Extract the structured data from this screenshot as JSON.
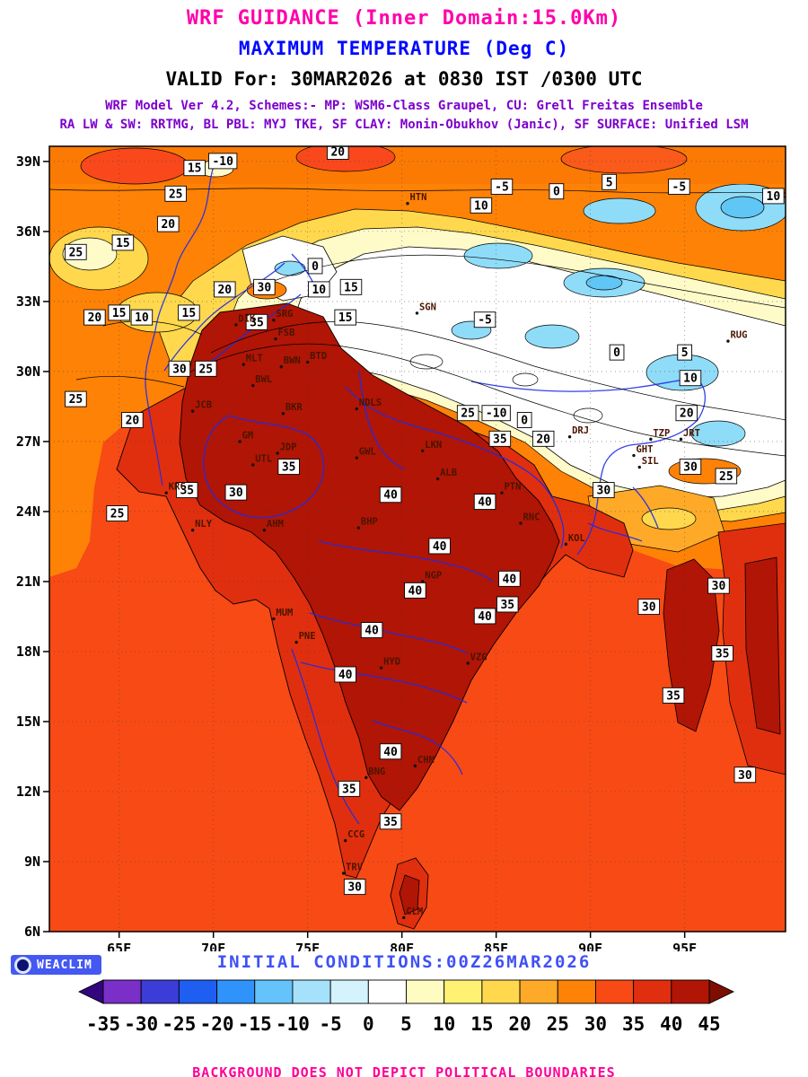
{
  "header": {
    "title": "WRF GUIDANCE (Inner Domain:15.0Km)",
    "subtitle": "MAXIMUM TEMPERATURE (Deg C)",
    "valid_line": "VALID For: 30MAR2026 at 0830 IST /0300 UTC",
    "model_line1": "WRF Model Ver 4.2, Schemes:- MP: WSM6-Class Graupel, CU: Grell Freitas Ensemble",
    "model_line2": "RA LW & SW: RRTMG, BL PBL: MYJ TKE, SF CLAY: Monin-Obukhov (Janic), SF SURFACE: Unified LSM",
    "colors": {
      "title": "#ff00aa",
      "subtitle": "#0008ff",
      "valid": "#000000",
      "model": "#7d00cc"
    }
  },
  "footer": {
    "logo_label": "WEACLIM",
    "initial_conditions": "INITIAL CONDITIONS:00Z26MAR2026",
    "disclaimer": "BACKGROUND DOES NOT DEPICT POLITICAL BOUNDARIES"
  },
  "chart_data": {
    "type": "heatmap",
    "subtype": "filled-contour-weather-map",
    "title": "WRF GUIDANCE (Inner Domain:15.0Km)",
    "variable": "Maximum Temperature",
    "units": "Deg C",
    "valid": "30MAR2026 at 0830 IST /0300 UTC",
    "initial_conditions": "00Z26MAR2026",
    "contour_interval": 5,
    "domain": {
      "lon_min": 61.3,
      "lon_max": 100.35,
      "lat_min": 6.0,
      "lat_max": 39.65
    },
    "axes": {
      "lon": {
        "labels": [
          "65E",
          "70E",
          "75E",
          "80E",
          "85E",
          "90E",
          "95E"
        ],
        "values": [
          65,
          70,
          75,
          80,
          85,
          90,
          95
        ]
      },
      "lat": {
        "labels": [
          "6N",
          "9N",
          "12N",
          "15N",
          "18N",
          "21N",
          "24N",
          "27N",
          "30N",
          "33N",
          "36N",
          "39N"
        ],
        "values": [
          6,
          9,
          12,
          15,
          18,
          21,
          24,
          27,
          30,
          33,
          36,
          39
        ]
      }
    },
    "colorbar": {
      "tick_labels": [
        "-35",
        "-30",
        "-25",
        "-20",
        "-15",
        "-10",
        "-5",
        "0",
        "5",
        "10",
        "15",
        "20",
        "25",
        "30",
        "35",
        "40",
        "45"
      ],
      "tick_values": [
        -35,
        -30,
        -25,
        -20,
        -15,
        -10,
        -5,
        0,
        5,
        10,
        15,
        20,
        25,
        30,
        35,
        40,
        45
      ],
      "segment_colors": [
        "#7a2fc8",
        "#3c3cd8",
        "#1e5ef0",
        "#2f93fb",
        "#64c3fb",
        "#a5e1fb",
        "#d4f3fd",
        "#ffffff",
        "#fffcc2",
        "#fff273",
        "#ffd84d",
        "#feaa28",
        "#fd8206",
        "#f84a15",
        "#e02f0e",
        "#b11505"
      ],
      "arrow_left_color": "#33067e",
      "arrow_right_color": "#7e0e02"
    },
    "contour_labels": [
      {
        "v": "20",
        "lon": 76.6,
        "lat": 39.4
      },
      {
        "v": "15",
        "lon": 69.0,
        "lat": 38.7
      },
      {
        "v": "-10",
        "lon": 70.5,
        "lat": 39.0
      },
      {
        "v": "25",
        "lon": 68.0,
        "lat": 37.6
      },
      {
        "v": "10",
        "lon": 84.2,
        "lat": 37.1
      },
      {
        "v": "-5",
        "lon": 85.3,
        "lat": 37.9
      },
      {
        "v": "0",
        "lon": 88.2,
        "lat": 37.7
      },
      {
        "v": "5",
        "lon": 91.0,
        "lat": 38.1
      },
      {
        "v": "-5",
        "lon": 94.7,
        "lat": 37.9
      },
      {
        "v": "10",
        "lon": 99.7,
        "lat": 37.5
      },
      {
        "v": "20",
        "lon": 67.6,
        "lat": 36.3
      },
      {
        "v": "15",
        "lon": 65.2,
        "lat": 35.5
      },
      {
        "v": "25",
        "lon": 62.7,
        "lat": 35.1
      },
      {
        "v": "30",
        "lon": 72.7,
        "lat": 33.6
      },
      {
        "v": "20",
        "lon": 70.6,
        "lat": 33.5
      },
      {
        "v": "10",
        "lon": 75.6,
        "lat": 33.5
      },
      {
        "v": "15",
        "lon": 77.3,
        "lat": 33.6
      },
      {
        "v": "0",
        "lon": 75.4,
        "lat": 34.5
      },
      {
        "v": "20",
        "lon": 63.7,
        "lat": 32.3
      },
      {
        "v": "15",
        "lon": 65.0,
        "lat": 32.5
      },
      {
        "v": "10",
        "lon": 66.2,
        "lat": 32.3
      },
      {
        "v": "15",
        "lon": 68.7,
        "lat": 32.5
      },
      {
        "v": "35",
        "lon": 72.3,
        "lat": 32.1
      },
      {
        "v": "15",
        "lon": 77.0,
        "lat": 32.3
      },
      {
        "v": "-5",
        "lon": 84.4,
        "lat": 32.2
      },
      {
        "v": "30",
        "lon": 68.2,
        "lat": 30.1
      },
      {
        "v": "25",
        "lon": 69.6,
        "lat": 30.1
      },
      {
        "v": "0",
        "lon": 91.4,
        "lat": 30.8
      },
      {
        "v": "5",
        "lon": 95.0,
        "lat": 30.8
      },
      {
        "v": "10",
        "lon": 95.3,
        "lat": 29.7
      },
      {
        "v": "25",
        "lon": 62.7,
        "lat": 28.8
      },
      {
        "v": "20",
        "lon": 65.7,
        "lat": 27.9
      },
      {
        "v": "25",
        "lon": 83.5,
        "lat": 28.2
      },
      {
        "v": "-10",
        "lon": 85.0,
        "lat": 28.2
      },
      {
        "v": "0",
        "lon": 86.5,
        "lat": 27.9
      },
      {
        "v": "35",
        "lon": 85.2,
        "lat": 27.1
      },
      {
        "v": "20",
        "lon": 87.5,
        "lat": 27.1
      },
      {
        "v": "20",
        "lon": 95.1,
        "lat": 28.2
      },
      {
        "v": "30",
        "lon": 95.3,
        "lat": 25.9
      },
      {
        "v": "25",
        "lon": 97.2,
        "lat": 25.5
      },
      {
        "v": "35",
        "lon": 68.6,
        "lat": 24.9
      },
      {
        "v": "30",
        "lon": 71.2,
        "lat": 24.8
      },
      {
        "v": "35",
        "lon": 74.0,
        "lat": 25.9
      },
      {
        "v": "40",
        "lon": 79.4,
        "lat": 24.7
      },
      {
        "v": "40",
        "lon": 84.4,
        "lat": 24.4
      },
      {
        "v": "30",
        "lon": 90.7,
        "lat": 24.9
      },
      {
        "v": "25",
        "lon": 64.9,
        "lat": 23.9
      },
      {
        "v": "40",
        "lon": 82.0,
        "lat": 22.5
      },
      {
        "v": "40",
        "lon": 80.7,
        "lat": 20.6
      },
      {
        "v": "40",
        "lon": 85.7,
        "lat": 21.1
      },
      {
        "v": "35",
        "lon": 85.6,
        "lat": 20.0
      },
      {
        "v": "40",
        "lon": 84.4,
        "lat": 19.5
      },
      {
        "v": "30",
        "lon": 96.8,
        "lat": 20.8
      },
      {
        "v": "30",
        "lon": 93.1,
        "lat": 19.9
      },
      {
        "v": "40",
        "lon": 78.4,
        "lat": 18.9
      },
      {
        "v": "35",
        "lon": 97.0,
        "lat": 17.9
      },
      {
        "v": "35",
        "lon": 94.4,
        "lat": 16.1
      },
      {
        "v": "40",
        "lon": 77.0,
        "lat": 17.0
      },
      {
        "v": "40",
        "lon": 79.4,
        "lat": 13.7
      },
      {
        "v": "30",
        "lon": 98.2,
        "lat": 12.7
      },
      {
        "v": "35",
        "lon": 77.2,
        "lat": 12.1
      },
      {
        "v": "35",
        "lon": 79.4,
        "lat": 10.7
      },
      {
        "v": "30",
        "lon": 77.5,
        "lat": 7.9
      }
    ],
    "stations": [
      {
        "c": "HTN",
        "lon": 80.3,
        "lat": 37.2
      },
      {
        "c": "SGN",
        "lon": 80.8,
        "lat": 32.5
      },
      {
        "c": "DIK",
        "lon": 71.2,
        "lat": 32.0
      },
      {
        "c": "SRG",
        "lon": 73.2,
        "lat": 32.2
      },
      {
        "c": "FSB",
        "lon": 73.3,
        "lat": 31.4
      },
      {
        "c": "MLT",
        "lon": 71.6,
        "lat": 30.3
      },
      {
        "c": "BWN",
        "lon": 73.6,
        "lat": 30.2
      },
      {
        "c": "BTD",
        "lon": 75.0,
        "lat": 30.4
      },
      {
        "c": "BWL",
        "lon": 72.1,
        "lat": 29.4
      },
      {
        "c": "JCB",
        "lon": 68.9,
        "lat": 28.3
      },
      {
        "c": "BKR",
        "lon": 73.7,
        "lat": 28.2
      },
      {
        "c": "NDLS",
        "lon": 77.6,
        "lat": 28.4
      },
      {
        "c": "GM",
        "lon": 71.4,
        "lat": 27.0
      },
      {
        "c": "JDP",
        "lon": 73.4,
        "lat": 26.5
      },
      {
        "c": "UTL",
        "lon": 72.1,
        "lat": 26.0
      },
      {
        "c": "GWL",
        "lon": 77.6,
        "lat": 26.3
      },
      {
        "c": "LKN",
        "lon": 81.1,
        "lat": 26.6
      },
      {
        "c": "ALB",
        "lon": 81.9,
        "lat": 25.4
      },
      {
        "c": "KRC",
        "lon": 67.5,
        "lat": 24.8
      },
      {
        "c": "NLY",
        "lon": 68.9,
        "lat": 23.2
      },
      {
        "c": "AHM",
        "lon": 72.7,
        "lat": 23.2
      },
      {
        "c": "BHP",
        "lon": 77.7,
        "lat": 23.3
      },
      {
        "c": "PTN",
        "lon": 85.3,
        "lat": 24.8
      },
      {
        "c": "RNC",
        "lon": 86.3,
        "lat": 23.5
      },
      {
        "c": "KOL",
        "lon": 88.7,
        "lat": 22.6
      },
      {
        "c": "NGP",
        "lon": 81.1,
        "lat": 21.0
      },
      {
        "c": "MUM",
        "lon": 73.2,
        "lat": 19.4
      },
      {
        "c": "PNE",
        "lon": 74.4,
        "lat": 18.4
      },
      {
        "c": "HYD",
        "lon": 78.9,
        "lat": 17.3
      },
      {
        "c": "VZG",
        "lon": 83.5,
        "lat": 17.5
      },
      {
        "c": "CHN",
        "lon": 80.7,
        "lat": 13.1
      },
      {
        "c": "BNG",
        "lon": 78.1,
        "lat": 12.6
      },
      {
        "c": "CCG",
        "lon": 77.0,
        "lat": 9.9
      },
      {
        "c": "TRV",
        "lon": 76.9,
        "lat": 8.5
      },
      {
        "c": "CLM",
        "lon": 80.1,
        "lat": 6.6
      },
      {
        "c": "GHT",
        "lon": 92.3,
        "lat": 26.4
      },
      {
        "c": "SIL",
        "lon": 92.6,
        "lat": 25.9
      },
      {
        "c": "RUG",
        "lon": 97.3,
        "lat": 31.3
      },
      {
        "c": "TZP",
        "lon": 93.2,
        "lat": 27.1
      },
      {
        "c": "JRT",
        "lon": 94.8,
        "lat": 27.1
      },
      {
        "c": "DRJ",
        "lon": 88.9,
        "lat": 27.2
      }
    ],
    "legend_position": "bottom",
    "grid": true
  }
}
